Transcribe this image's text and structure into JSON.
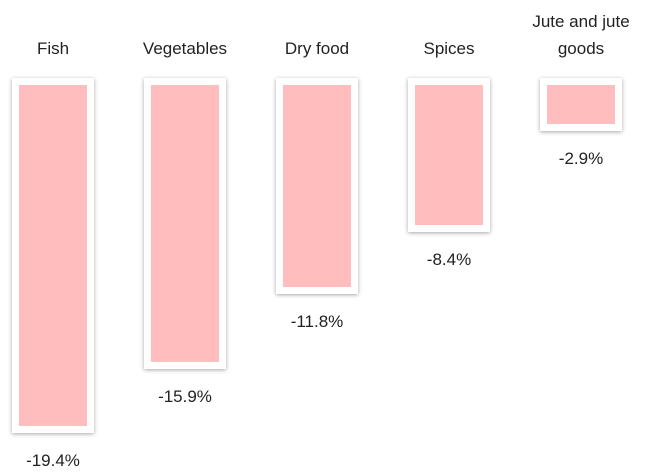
{
  "chart_data": {
    "type": "bar",
    "categories": [
      "Fish",
      "Vegetables",
      "Dry food",
      "Spices",
      "Jute and jute goods"
    ],
    "values": [
      -19.4,
      -15.9,
      -11.8,
      -8.4,
      -2.9
    ],
    "value_labels": [
      "-19.4%",
      "-15.9%",
      "-11.8%",
      "-8.4%",
      "-2.9%"
    ],
    "color": "#ffbdbd"
  }
}
